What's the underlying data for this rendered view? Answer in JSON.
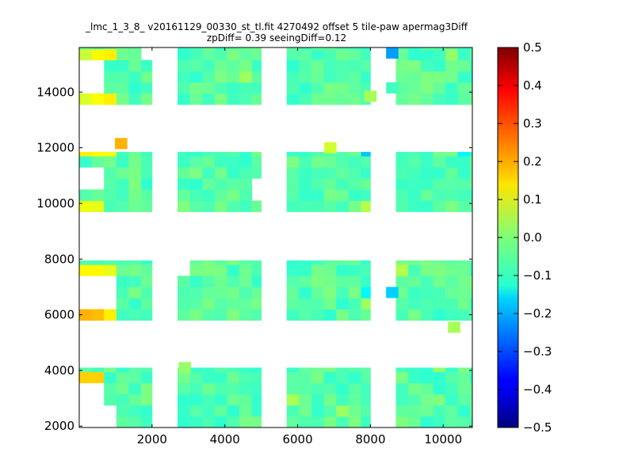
{
  "chart_data": {
    "type": "heatmap",
    "title": "_lmc_1_3_8_ v20161129_00330_st_tl.fit 4270492 offset 5 tile-paw apermag3Diff",
    "subtitle": "zpDiff= 0.39 seeingDiff=0.12",
    "xlabel": "",
    "ylabel": "",
    "xlim": [
      0,
      10800
    ],
    "ylim": [
      1950,
      15600
    ],
    "x_ticks": [
      2000,
      4000,
      6000,
      8000,
      10000
    ],
    "y_ticks": [
      2000,
      4000,
      6000,
      8000,
      10000,
      12000,
      14000
    ],
    "colormap": "jet",
    "colorbar": {
      "vmin": -0.5,
      "vmax": 0.5,
      "ticks": [
        "0.5",
        "0.4",
        "0.3",
        "0.2",
        "0.1",
        "0.0",
        "−0.1",
        "−0.2",
        "−0.3",
        "−0.4",
        "−0.5"
      ]
    },
    "cell_width": 340,
    "cell_height": 400,
    "column_groups": [
      {
        "x_start": 0,
        "x_end": 2000
      },
      {
        "x_start": 2700,
        "x_end": 5000
      },
      {
        "x_start": 5700,
        "x_end": 8000
      },
      {
        "x_start": 8700,
        "x_end": 10800
      }
    ],
    "row_groups": [
      {
        "y_start": 1950,
        "y_end": 4100
      },
      {
        "y_start": 5800,
        "y_end": 7950
      },
      {
        "y_start": 9700,
        "y_end": 11850
      },
      {
        "y_start": 13550,
        "y_end": 15600
      }
    ],
    "base_value": -0.04,
    "highlights": [
      {
        "x": 100,
        "y": 3850,
        "value": 0.17
      },
      {
        "x": 450,
        "y": 3850,
        "value": 0.17
      },
      {
        "x": 100,
        "y": 6000,
        "value": 0.2
      },
      {
        "x": 450,
        "y": 6000,
        "value": 0.19
      },
      {
        "x": 800,
        "y": 6000,
        "value": 0.14
      },
      {
        "x": 100,
        "y": 7700,
        "value": 0.13
      },
      {
        "x": 450,
        "y": 7700,
        "value": 0.13
      },
      {
        "x": 800,
        "y": 7700,
        "value": 0.1
      },
      {
        "x": 100,
        "y": 10000,
        "value": 0.11
      },
      {
        "x": 450,
        "y": 10000,
        "value": 0.1
      },
      {
        "x": 100,
        "y": 11700,
        "value": 0.14
      },
      {
        "x": 450,
        "y": 11700,
        "value": 0.13
      },
      {
        "x": 800,
        "y": 11700,
        "value": 0.11
      },
      {
        "x": 1150,
        "y": 12150,
        "value": 0.2
      },
      {
        "x": 100,
        "y": 13850,
        "value": 0.09
      },
      {
        "x": 450,
        "y": 13850,
        "value": 0.12
      },
      {
        "x": 800,
        "y": 13850,
        "value": 0.14
      },
      {
        "x": 100,
        "y": 15400,
        "value": 0.07
      },
      {
        "x": 450,
        "y": 15400,
        "value": 0.13
      },
      {
        "x": 800,
        "y": 15400,
        "value": 0.14
      },
      {
        "x": 6900,
        "y": 12000,
        "value": 0.08
      },
      {
        "x": 7950,
        "y": 11700,
        "value": -0.18
      },
      {
        "x": 7950,
        "y": 10000,
        "value": 0.05
      },
      {
        "x": 7950,
        "y": 6600,
        "value": -0.13
      },
      {
        "x": 7950,
        "y": 6250,
        "value": 0.03
      },
      {
        "x": 8600,
        "y": 15400,
        "value": -0.22
      },
      {
        "x": 8600,
        "y": 14150,
        "value": -0.06
      },
      {
        "x": 8600,
        "y": 6800,
        "value": -0.17
      },
      {
        "x": 8950,
        "y": 7700,
        "value": 0.05
      },
      {
        "x": 10300,
        "y": 5550,
        "value": 0.04
      },
      {
        "x": 10650,
        "y": 11700,
        "value": -0.13
      },
      {
        "x": 4700,
        "y": 14500,
        "value": 0.03
      },
      {
        "x": 8000,
        "y": 13850,
        "value": 0.04
      },
      {
        "x": 6000,
        "y": 3050,
        "value": 0.04
      },
      {
        "x": 7200,
        "y": 2650,
        "value": 0.03
      },
      {
        "x": 2900,
        "y": 4100,
        "value": 0.02
      },
      {
        "x": 10100,
        "y": 15200,
        "value": 0.02
      },
      {
        "x": 9800,
        "y": 4000,
        "value": 0.02
      }
    ],
    "gaps": [
      {
        "x": 0,
        "y": 14150,
        "w": 680,
        "h": 850
      },
      {
        "x": 0,
        "y": 10400,
        "w": 680,
        "h": 950
      },
      {
        "x": 0,
        "y": 6400,
        "w": 680,
        "h": 900
      },
      {
        "x": 0,
        "y": 1950,
        "w": 680,
        "h": 1700
      },
      {
        "x": 680,
        "y": 1950,
        "w": 340,
        "h": 800
      },
      {
        "x": 680,
        "y": 6400,
        "w": 340,
        "h": 900
      },
      {
        "x": 1700,
        "y": 15150,
        "w": 300,
        "h": 450
      },
      {
        "x": 2400,
        "y": 1950,
        "w": 0,
        "h": 0
      },
      {
        "x": 2700,
        "y": 7300,
        "w": 300,
        "h": 650
      },
      {
        "x": 4650,
        "y": 10050,
        "w": 350,
        "h": 950
      },
      {
        "x": 5700,
        "y": 1950,
        "w": 0,
        "h": 0
      },
      {
        "x": 7950,
        "y": 3650,
        "w": 50,
        "h": 450
      },
      {
        "x": 7950,
        "y": 10400,
        "w": 50,
        "h": 700
      },
      {
        "x": 8700,
        "y": 15150,
        "w": 0,
        "h": 0
      }
    ]
  }
}
